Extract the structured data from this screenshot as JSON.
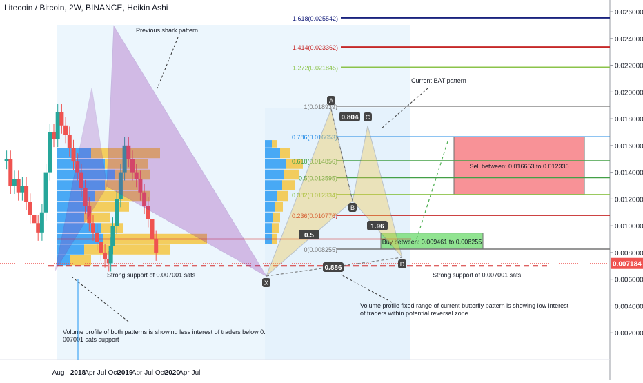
{
  "header": {
    "title": "Litecoin / Bitcoin, 2W, BINANCE, Heikin Ashi"
  },
  "chart_data": {
    "type": "candlestick",
    "symbol": "Litecoin / Bitcoin",
    "interval": "2W",
    "exchange": "BINANCE",
    "candle_style": "Heikin Ashi",
    "ylim": [
      0.0,
      0.026
    ],
    "y_ticks": [
      "0.026000",
      "0.024000",
      "0.022000",
      "0.020000",
      "0.018000",
      "0.016000",
      "0.014000",
      "0.012000",
      "0.010000",
      "0.008000",
      "0.006000",
      "0.004000",
      "0.002000"
    ],
    "x_ticks": [
      "Aug",
      "2018",
      "Apr",
      "Jul",
      "Oct",
      "2019",
      "Apr",
      "Jul",
      "Oct",
      "2020",
      "Apr",
      "Jul"
    ],
    "current_price_label": "0.007184",
    "colors": {
      "up": "#26a69a",
      "down": "#ef5350",
      "blue_line": "#1f2a7a",
      "red_line": "#d32f2f",
      "green_line": "#8bc34a",
      "support": "#d32f2f"
    },
    "fib_levels": [
      {
        "label": "1.618(0.025542)",
        "value": 0.025542,
        "color": "#1a237e",
        "extends": "right"
      },
      {
        "label": "1.414(0.023362)",
        "value": 0.023362,
        "color": "#c62828",
        "extends": "right"
      },
      {
        "label": "1.272(0.021845)",
        "value": 0.021845,
        "color": "#8bc34a",
        "extends": "right"
      },
      {
        "label": "1(0.018939)",
        "value": 0.018939,
        "color": "#757575",
        "extends": "right"
      },
      {
        "label": "0.786(0.016653)",
        "value": 0.016653,
        "color": "#1e88e5",
        "extends": "right"
      },
      {
        "label": "0.618(0.014856)",
        "value": 0.014856,
        "color": "#43a047",
        "extends": "right"
      },
      {
        "label": "0.5(0.013595)",
        "value": 0.013595,
        "color": "#43a047",
        "extends": "right"
      },
      {
        "label": "0.382(0.012334)",
        "value": 0.012334,
        "color": "#8bc34a",
        "extends": "right"
      },
      {
        "label": "0.236(0.010776)",
        "value": 0.010776,
        "color": "#c62828",
        "extends": "right"
      },
      {
        "label": "0(0.008255)",
        "value": 0.008255,
        "color": "#757575",
        "extends": "right"
      }
    ],
    "xabcd_points": [
      {
        "label": "X",
        "value": 0.007001
      },
      {
        "label": "A",
        "value": 0.018939
      },
      {
        "label": "B",
        "value": 0.012334
      },
      {
        "label": "C",
        "value": 0.0178
      },
      {
        "label": "D",
        "value": 0.0082
      }
    ],
    "ratio_labels": [
      "0.804",
      "0.5",
      "1.96",
      "0.886"
    ],
    "zones": [
      {
        "label": "Sell between: 0.016653 to 0.012336",
        "from": 0.012336,
        "to": 0.016653,
        "color": "#f77f86"
      },
      {
        "label": "Buy between: 0.009461 to 0.008255",
        "from": 0.008255,
        "to": 0.009461,
        "color": "#7ee07e"
      }
    ],
    "support": {
      "value": 0.007001,
      "labels": [
        "Strong support of 0.007001 sats",
        "Strong support of 0.007001 sats"
      ]
    },
    "annotations": [
      "Previous shark pattern",
      "Current BAT pattern",
      "Volume profile fixed range of current butterfly pattern is showing low interest of traders within potential reversal zone",
      "Volume profile of both patterns is showing less interest of traders below 0. 007001 sats support"
    ]
  }
}
